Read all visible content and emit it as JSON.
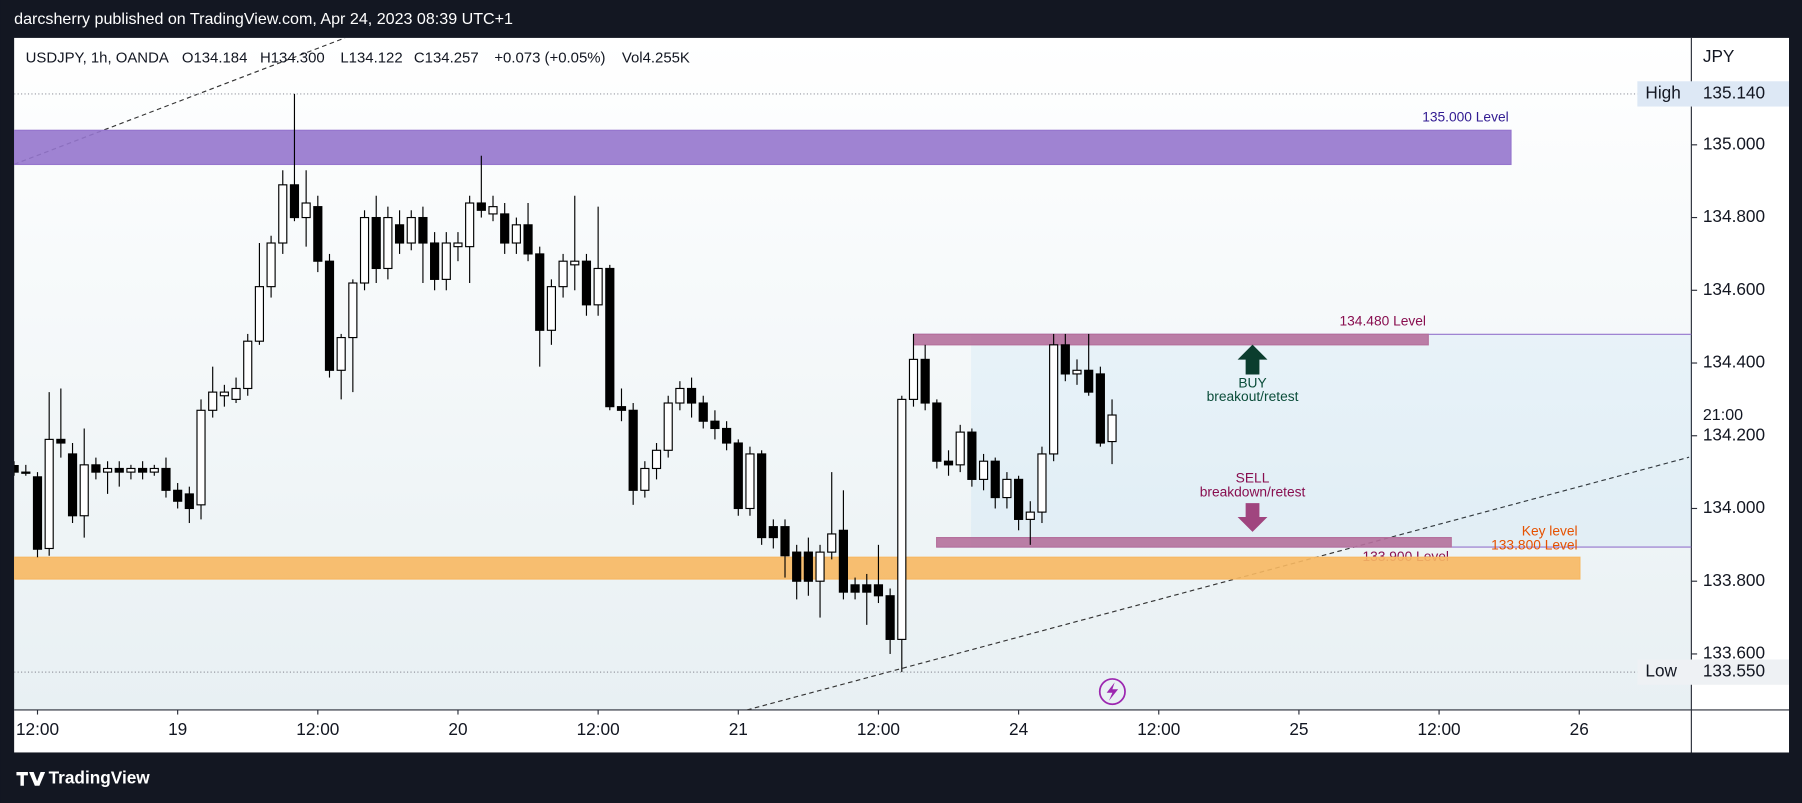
{
  "attribution": "darcsherry published on TradingView.com, Apr 24, 2023 08:39 UTC+1",
  "brand": "TradingView",
  "chart_data": {
    "type": "candlestick",
    "legend": [
      "USDJPY, 1h, OANDA",
      "O134.184",
      "H134.300",
      "L134.122",
      "C134.257",
      "+0.073 (+0.05%)",
      "Vol4.255K"
    ],
    "currency": "JPY",
    "time_label": "21:00",
    "open": [
      134.118,
      134.1,
      134.087,
      133.89,
      134.19,
      134.15,
      133.98,
      134.12,
      134.1,
      134.11,
      134.1,
      134.11,
      134.1,
      134.11,
      134.05,
      134.04,
      134.01,
      134.27,
      134.31,
      134.3,
      134.33,
      134.46,
      134.61,
      134.73,
      134.89,
      134.8,
      134.83,
      134.68,
      134.38,
      134.47,
      134.62,
      134.8,
      134.66,
      134.78,
      134.73,
      134.8,
      134.73,
      134.63,
      134.72,
      134.72,
      134.84,
      134.81,
      134.81,
      134.73,
      134.78,
      134.7,
      134.49,
      134.61,
      134.67,
      134.68,
      134.56,
      134.66,
      134.28,
      134.27,
      134.05,
      134.11,
      134.16,
      134.29,
      134.33,
      134.29,
      134.24,
      134.22,
      134.18,
      134.0,
      134.15,
      133.95,
      133.95,
      133.88,
      133.88,
      133.8,
      133.88,
      133.94,
      133.79,
      133.79,
      133.79,
      133.76,
      133.64,
      134.3,
      134.41,
      134.29,
      134.13,
      134.12,
      134.21,
      134.08,
      134.13,
      134.03,
      134.08,
      133.97,
      133.99,
      134.15,
      134.45,
      134.37,
      134.38,
      134.37,
      134.184
    ],
    "high": [
      134.13,
      134.12,
      134.1,
      134.32,
      134.33,
      134.18,
      134.22,
      134.14,
      134.13,
      134.13,
      134.12,
      134.13,
      134.12,
      134.14,
      134.07,
      134.06,
      134.3,
      134.39,
      134.34,
      134.36,
      134.48,
      134.73,
      134.75,
      134.93,
      135.14,
      134.93,
      134.86,
      134.7,
      134.48,
      134.63,
      134.82,
      134.86,
      134.83,
      134.82,
      134.82,
      134.83,
      134.76,
      134.76,
      134.76,
      134.86,
      134.97,
      134.86,
      134.84,
      134.8,
      134.84,
      134.72,
      134.63,
      134.7,
      134.86,
      134.7,
      134.83,
      134.67,
      134.33,
      134.29,
      134.13,
      134.18,
      134.31,
      134.35,
      134.36,
      134.31,
      134.27,
      134.24,
      134.19,
      134.17,
      134.16,
      133.97,
      133.97,
      133.9,
      133.92,
      133.9,
      134.1,
      134.05,
      133.81,
      133.82,
      133.9,
      133.78,
      134.31,
      134.48,
      134.45,
      134.3,
      134.16,
      134.23,
      134.22,
      134.15,
      134.14,
      134.1,
      134.09,
      134.02,
      134.17,
      134.48,
      134.48,
      134.41,
      134.48,
      134.39,
      134.3
    ],
    "low": [
      134.09,
      134.09,
      133.866,
      133.87,
      134.14,
      133.96,
      133.92,
      134.08,
      134.04,
      134.06,
      134.08,
      134.08,
      134.09,
      134.03,
      134.0,
      133.96,
      133.97,
      134.25,
      134.28,
      134.29,
      134.31,
      134.45,
      134.58,
      134.7,
      134.79,
      134.72,
      134.65,
      134.36,
      134.3,
      134.32,
      134.6,
      134.62,
      134.63,
      134.7,
      134.71,
      134.62,
      134.6,
      134.6,
      134.68,
      134.62,
      134.8,
      134.79,
      134.7,
      134.7,
      134.68,
      134.39,
      134.45,
      134.58,
      134.6,
      134.53,
      134.53,
      134.27,
      134.24,
      134.01,
      134.03,
      134.08,
      134.14,
      134.27,
      134.25,
      134.22,
      134.19,
      134.16,
      133.98,
      133.98,
      133.9,
      133.89,
      133.81,
      133.75,
      133.76,
      133.7,
      133.86,
      133.75,
      133.75,
      133.68,
      133.74,
      133.6,
      133.55,
      134.28,
      134.27,
      134.11,
      134.09,
      134.1,
      134.06,
      134.05,
      134.0,
      134.0,
      133.94,
      133.9,
      133.96,
      134.13,
      134.35,
      134.34,
      134.31,
      134.17,
      134.122
    ],
    "close": [
      134.1,
      134.1,
      133.888,
      134.19,
      134.18,
      133.98,
      134.12,
      134.1,
      134.11,
      134.1,
      134.11,
      134.1,
      134.11,
      134.05,
      134.02,
      134.0,
      134.27,
      134.32,
      134.32,
      134.33,
      134.46,
      134.61,
      134.73,
      134.89,
      134.8,
      134.84,
      134.68,
      134.38,
      134.47,
      134.62,
      134.8,
      134.66,
      134.8,
      134.73,
      134.8,
      134.73,
      134.63,
      134.73,
      134.73,
      134.84,
      134.82,
      134.83,
      134.73,
      134.78,
      134.7,
      134.49,
      134.61,
      134.68,
      134.68,
      134.56,
      134.66,
      134.28,
      134.27,
      134.05,
      134.11,
      134.16,
      134.29,
      134.33,
      134.29,
      134.24,
      134.22,
      134.18,
      134.0,
      134.15,
      133.92,
      133.92,
      133.87,
      133.8,
      133.8,
      133.88,
      133.93,
      133.77,
      133.77,
      133.77,
      133.76,
      133.64,
      134.3,
      134.41,
      134.29,
      134.13,
      134.12,
      134.21,
      134.08,
      134.13,
      134.03,
      134.08,
      133.97,
      133.99,
      134.15,
      134.45,
      134.37,
      134.38,
      134.32,
      134.18,
      134.257
    ],
    "up_color": "#ffffff",
    "down_color": "#000000",
    "xlim": [
      0,
      143.6
    ],
    "xticks": [
      {
        "value": 2,
        "label": "12:00"
      },
      {
        "value": 14,
        "label": "19"
      },
      {
        "value": 26,
        "label": "12:00"
      },
      {
        "value": 38,
        "label": "20"
      },
      {
        "value": 50,
        "label": "12:00"
      },
      {
        "value": 62,
        "label": "21"
      },
      {
        "value": 74,
        "label": "12:00"
      },
      {
        "value": 86,
        "label": "24"
      },
      {
        "value": 98,
        "label": "12:00"
      },
      {
        "value": 110,
        "label": "25"
      },
      {
        "value": 122,
        "label": "12:00"
      },
      {
        "value": 134,
        "label": "26"
      }
    ],
    "ylim": [
      133.446,
      135.294
    ],
    "yticks": [
      {
        "value": 133.6,
        "label": "133.600"
      },
      {
        "value": 133.8,
        "label": "133.800"
      },
      {
        "value": 134.0,
        "label": "134.000"
      },
      {
        "value": 134.2,
        "label": "134.200"
      },
      {
        "value": 134.4,
        "label": "134.400"
      },
      {
        "value": 134.6,
        "label": "134.600"
      },
      {
        "value": 134.8,
        "label": "134.800"
      },
      {
        "value": 135.0,
        "label": "135.000"
      }
    ],
    "markers": [
      {
        "name": "High",
        "value": 135.14,
        "value_label": "135.140"
      },
      {
        "name": "Low",
        "value": 133.55,
        "value_label": "133.550"
      }
    ],
    "zones": [
      {
        "labels": [
          "135.000 Level"
        ],
        "top": 135.04,
        "bottom": 134.946,
        "color": "#9575cd",
        "label_color": "#311b92"
      },
      {
        "labels": [
          "134.480 Level"
        ],
        "top": 134.479,
        "bottom": 134.45,
        "color": "#b5709c",
        "label_color": "#880e4f"
      },
      {
        "labels": [
          "133.900 Level"
        ],
        "top": 133.92,
        "bottom": 133.894,
        "color": "#b5709c",
        "label_color": "#880e4f"
      },
      {
        "labels": [
          "Key level",
          "133.800 Level"
        ],
        "top": 133.866,
        "bottom": 133.806,
        "color": "#f7b862",
        "label_color": "#e65100"
      }
    ],
    "buy": {
      "title": "BUY",
      "subtitle": "breakout/retest",
      "color": "#0b4d3a"
    },
    "sell": {
      "title": "SELL",
      "subtitle": "breakdown/retest",
      "color": "#880e4f"
    }
  }
}
